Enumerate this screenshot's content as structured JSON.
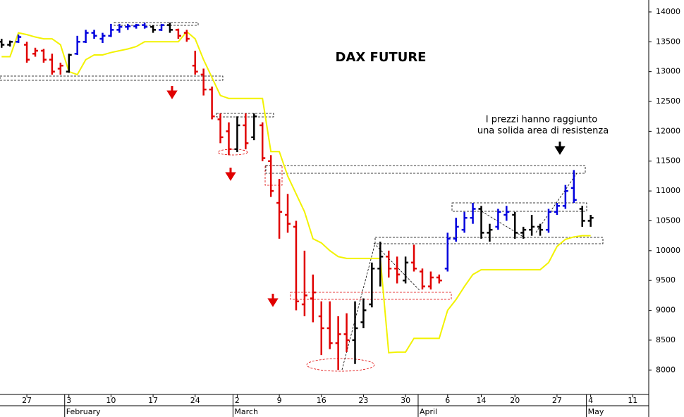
{
  "chart_data": {
    "type": "ohlc",
    "title": "DAX FUTURE",
    "annotation": [
      "I prezzi hanno raggiunto",
      "una solida area di resistenza"
    ],
    "x": [
      0,
      1,
      2,
      3,
      4,
      5,
      6,
      7,
      8,
      9,
      10,
      11,
      12,
      13,
      14,
      15,
      16,
      17,
      18,
      19,
      20,
      21,
      22,
      23,
      24,
      25,
      26,
      27,
      28,
      29,
      30,
      31,
      32,
      33,
      34,
      35,
      36,
      37,
      38,
      39,
      40,
      41,
      42,
      43,
      44,
      45,
      46,
      47,
      48,
      49,
      50,
      51,
      52,
      53,
      54,
      55,
      56,
      57,
      58,
      59,
      60,
      61,
      62,
      63,
      64,
      65,
      66,
      67,
      68,
      69,
      70
    ],
    "open": [
      13500,
      13450,
      13500,
      13450,
      13300,
      13350,
      13200,
      13050,
      13000,
      13300,
      13500,
      13650,
      13550,
      13600,
      13700,
      13750,
      13760,
      13780,
      13750,
      13700,
      13780,
      13700,
      13650,
      13100,
      12950,
      12700,
      12200,
      12000,
      11700,
      12100,
      11900,
      12100,
      11500,
      10800,
      10600,
      10400,
      9100,
      9200,
      8900,
      8700,
      8450,
      8600,
      8500,
      8800,
      9100,
      9700,
      9900,
      9700,
      9500,
      9800,
      9650,
      9400,
      9550,
      9700,
      10200,
      10350,
      10550,
      10700,
      10300,
      10400,
      10600,
      10600,
      10300,
      10350,
      10400,
      10350,
      10650,
      10750,
      11050,
      10700,
      10500
    ],
    "high": [
      13550,
      13520,
      13620,
      13500,
      13400,
      13380,
      13300,
      13150,
      13300,
      13600,
      13700,
      13700,
      13650,
      13800,
      13800,
      13800,
      13800,
      13820,
      13780,
      13800,
      13820,
      13720,
      13700,
      13350,
      13050,
      12750,
      12300,
      12150,
      12250,
      12300,
      12300,
      12150,
      11600,
      11200,
      10950,
      10500,
      10000,
      9600,
      9150,
      9150,
      8900,
      8950,
      9150,
      9200,
      9800,
      10150,
      10000,
      9900,
      9900,
      10100,
      9700,
      9650,
      9600,
      10300,
      10550,
      10650,
      10800,
      10750,
      10450,
      10700,
      10750,
      10650,
      10400,
      10600,
      10450,
      10700,
      10800,
      11100,
      11350,
      10750,
      10600
    ],
    "low": [
      13400,
      13420,
      13480,
      13150,
      13250,
      13150,
      12950,
      12950,
      12980,
      13280,
      13480,
      13550,
      13480,
      13580,
      13650,
      13700,
      13720,
      13720,
      13650,
      13680,
      13650,
      13550,
      13500,
      12950,
      12600,
      12200,
      11800,
      11600,
      11650,
      11700,
      11850,
      11500,
      10900,
      10200,
      10300,
      9000,
      8900,
      8800,
      8250,
      8350,
      8000,
      8300,
      8100,
      8700,
      9050,
      9400,
      9550,
      9450,
      9450,
      9650,
      9350,
      9350,
      9450,
      9650,
      10150,
      10300,
      10450,
      10200,
      10150,
      10350,
      10500,
      10200,
      10200,
      10250,
      10250,
      10300,
      10600,
      10700,
      10800,
      10400,
      10400
    ],
    "close": [
      13450,
      13500,
      13580,
      13200,
      13350,
      13200,
      13000,
      13100,
      13280,
      13500,
      13650,
      13600,
      13600,
      13700,
      13750,
      13760,
      13780,
      13750,
      13700,
      13780,
      13700,
      13600,
      13550,
      13000,
      12700,
      12250,
      11900,
      11700,
      12100,
      11800,
      12250,
      11550,
      11000,
      10650,
      10450,
      9150,
      9250,
      9300,
      8700,
      8450,
      8600,
      8500,
      8700,
      9000,
      9700,
      9900,
      9700,
      9600,
      9800,
      9700,
      9400,
      9550,
      9500,
      10200,
      10400,
      10550,
      10700,
      10300,
      10350,
      10650,
      10650,
      10300,
      10350,
      10400,
      10350,
      10650,
      10750,
      11000,
      10850,
      10500,
      10550
    ],
    "bar_colors": [
      "#000000",
      "#000000",
      "#0000dd",
      "#e00000",
      "#e00000",
      "#e00000",
      "#e00000",
      "#e00000",
      "#000000",
      "#0000dd",
      "#0000dd",
      "#0000dd",
      "#0000dd",
      "#0000dd",
      "#0000dd",
      "#0000dd",
      "#0000dd",
      "#0000dd",
      "#000000",
      "#0000dd",
      "#000000",
      "#e00000",
      "#e00000",
      "#e00000",
      "#e00000",
      "#e00000",
      "#e00000",
      "#e00000",
      "#000000",
      "#e00000",
      "#000000",
      "#e00000",
      "#e00000",
      "#e00000",
      "#e00000",
      "#e00000",
      "#e00000",
      "#e00000",
      "#e00000",
      "#e00000",
      "#e00000",
      "#e00000",
      "#000000",
      "#000000",
      "#000000",
      "#000000",
      "#e00000",
      "#e00000",
      "#000000",
      "#e00000",
      "#e00000",
      "#e00000",
      "#e00000",
      "#0000dd",
      "#0000dd",
      "#0000dd",
      "#0000dd",
      "#000000",
      "#000000",
      "#0000dd",
      "#0000dd",
      "#000000",
      "#000000",
      "#000000",
      "#000000",
      "#0000dd",
      "#0000dd",
      "#0000dd",
      "#0000dd",
      "#000000",
      "#000000"
    ],
    "line": {
      "color": "#f2f200",
      "values": [
        13250,
        13250,
        13650,
        13620,
        13580,
        13550,
        13550,
        13450,
        13000,
        12950,
        13200,
        13280,
        13280,
        13320,
        13350,
        13380,
        13420,
        13500,
        13500,
        13500,
        13500,
        13500,
        13670,
        13550,
        13200,
        12900,
        12600,
        12550,
        12550,
        12550,
        12550,
        12550,
        11660,
        11660,
        11250,
        10950,
        10650,
        10200,
        10130,
        10000,
        9900,
        9870,
        9870,
        9870,
        9870,
        9870,
        8290,
        8300,
        8300,
        8530,
        8530,
        8530,
        8530,
        9000,
        9180,
        9400,
        9600,
        9680,
        9680,
        9680,
        9680,
        9680,
        9680,
        9680,
        9680,
        9800,
        10070,
        10190,
        10230,
        10250,
        10250
      ]
    },
    "xlim": [
      -0.19,
      76.9
    ],
    "ylim": [
      7590,
      14200
    ],
    "yticks": [
      8000,
      8500,
      9000,
      9500,
      10000,
      10500,
      11000,
      11500,
      12000,
      12500,
      13000,
      13500,
      14000
    ],
    "xticks": [
      {
        "value": 3,
        "label": "27"
      },
      {
        "value": 8,
        "label": "3"
      },
      {
        "value": 13,
        "label": "10"
      },
      {
        "value": 18,
        "label": "17"
      },
      {
        "value": 23,
        "label": "24"
      },
      {
        "value": 28,
        "label": "2"
      },
      {
        "value": 33,
        "label": "9"
      },
      {
        "value": 38,
        "label": "16"
      },
      {
        "value": 43,
        "label": "23"
      },
      {
        "value": 48,
        "label": "30"
      },
      {
        "value": 53,
        "label": "6"
      },
      {
        "value": 57,
        "label": "14"
      },
      {
        "value": 61,
        "label": "20"
      },
      {
        "value": 66,
        "label": "27"
      },
      {
        "value": 70,
        "label": "4"
      },
      {
        "value": 75,
        "label": "11"
      }
    ],
    "months": [
      {
        "value": 8,
        "label": "February"
      },
      {
        "value": 28,
        "label": "March"
      },
      {
        "value": 50,
        "label": "April"
      },
      {
        "value": 70,
        "label": "May"
      }
    ]
  }
}
